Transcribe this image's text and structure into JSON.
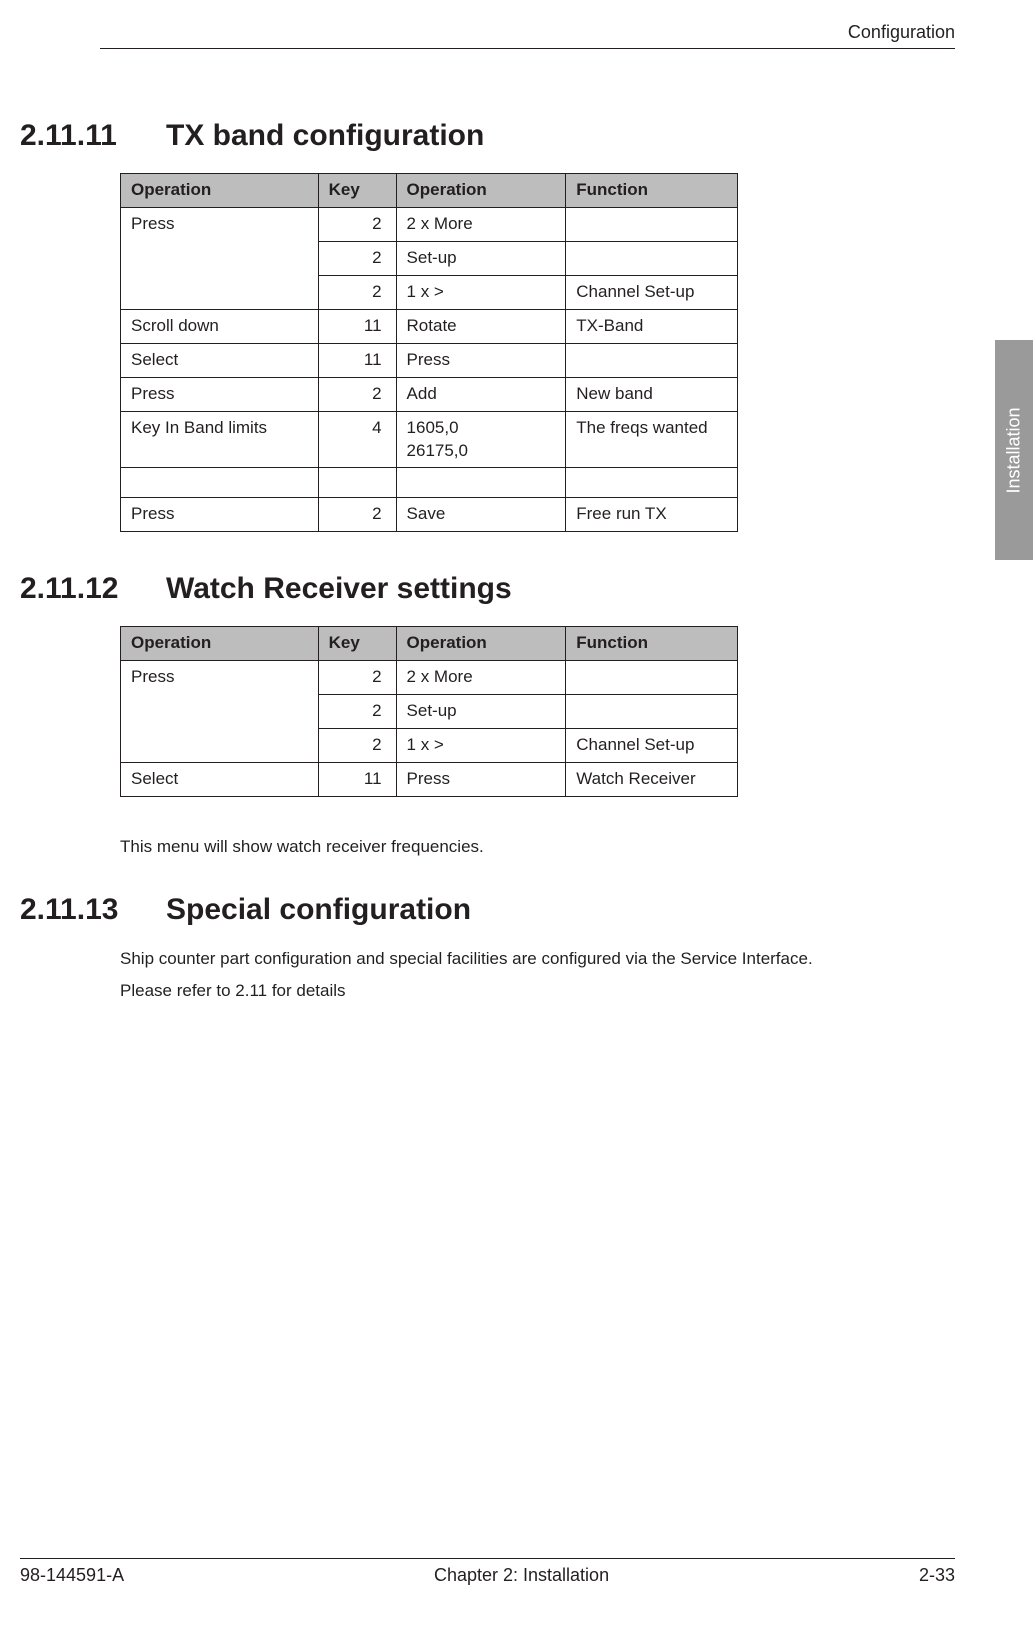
{
  "header": {
    "chapter_label": "Configuration"
  },
  "side_tab": {
    "label": "Installation"
  },
  "sections": {
    "s1": {
      "number": "2.11.11",
      "title": "TX band configuration",
      "table": {
        "headers": [
          "Operation",
          "Key",
          "Operation",
          "Function"
        ],
        "rows": [
          {
            "op1": "Press",
            "key": "2",
            "op2": "2 x More",
            "func": "",
            "merge_down": true
          },
          {
            "op1": "",
            "key": "2",
            "op2": "Set-up",
            "func": "",
            "merged": true,
            "merge_down": true
          },
          {
            "op1": "",
            "key": "2",
            "op2": "1 x >",
            "func": "Channel Set-up",
            "merged": true
          },
          {
            "op1": "Scroll down",
            "key": "11",
            "op2": "Rotate",
            "func": "TX-Band"
          },
          {
            "op1": "Select",
            "key": "11",
            "op2": "Press",
            "func": ""
          },
          {
            "op1": "Press",
            "key": "2",
            "op2": "Add",
            "func": "New band"
          },
          {
            "op1": "Key In Band limits",
            "key": "4",
            "op2": "1605,0\n26175,0",
            "func": "The freqs wanted"
          },
          {
            "op1": "",
            "key": "",
            "op2": "",
            "func": "",
            "empty": true
          },
          {
            "op1": "Press",
            "key": "2",
            "op2": "Save",
            "func": "Free run TX"
          }
        ]
      }
    },
    "s2": {
      "number": "2.11.12",
      "title": "Watch Receiver settings",
      "table": {
        "headers": [
          "Operation",
          "Key",
          "Operation",
          "Function"
        ],
        "rows": [
          {
            "op1": "Press",
            "key": "2",
            "op2": "2 x More",
            "func": "",
            "merge_down": true
          },
          {
            "op1": "",
            "key": "2",
            "op2": "Set-up",
            "func": "",
            "merged": true,
            "merge_down": true
          },
          {
            "op1": "",
            "key": "2",
            "op2": "1 x >",
            "func": "Channel Set-up",
            "merged": true
          },
          {
            "op1": "Select",
            "key": "11",
            "op2": "Press",
            "func": "Watch Receiver"
          }
        ]
      },
      "note": "This menu will show watch receiver frequencies."
    },
    "s3": {
      "number": "2.11.13",
      "title": "Special configuration",
      "body1": "Ship counter part configuration and special facilities are configured via the Service Interface.",
      "body2": "Please refer to 2.11 for details"
    }
  },
  "footer": {
    "left": "98-144591-A",
    "center": "Chapter 2: Installation",
    "right": "2-33"
  },
  "colors": {
    "text": "#231f20",
    "header_bg": "#bdbdbd",
    "tab_bg": "#999a99",
    "tab_text": "#ffffff",
    "border": "#231f20",
    "background": "#ffffff"
  }
}
